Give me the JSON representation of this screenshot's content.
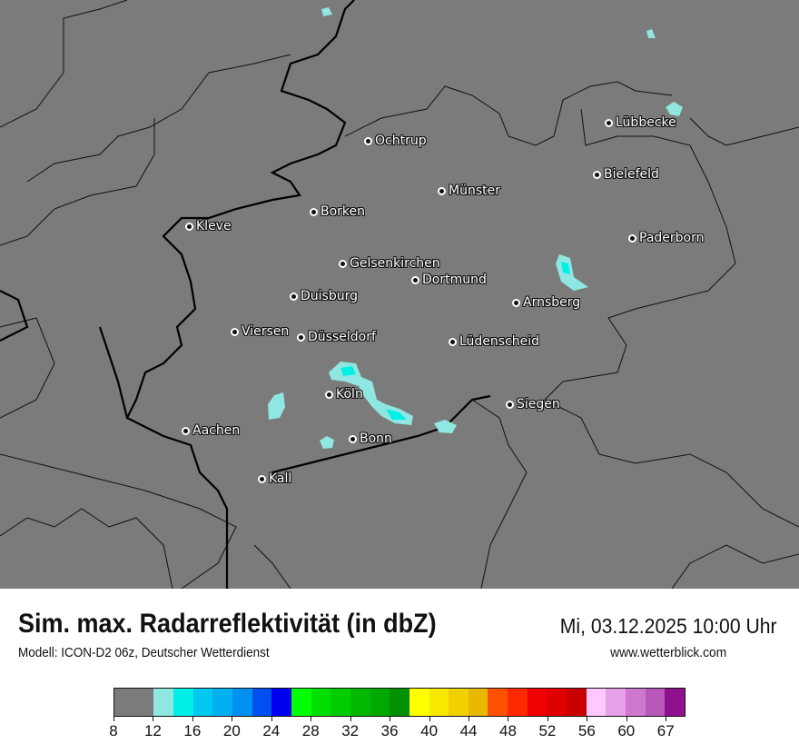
{
  "title": "Sim. max. Radarreflektivität (in dbZ)",
  "datetime": "Mi, 03.12.2025 10:00 Uhr",
  "model": "Modell: ICON-D2 06z, Deutscher Wetterdienst",
  "website": "www.wetterblick.com",
  "map": {
    "background_color": "#7b7b7b",
    "precip_color_light": "#90e6e0",
    "precip_color_core": "#00f0e8",
    "cities": [
      {
        "name": "Ochtrup"
      },
      {
        "name": "Lübbecke"
      },
      {
        "name": "Bielefeld"
      },
      {
        "name": "Münster"
      },
      {
        "name": "Borken"
      },
      {
        "name": "Kleve"
      },
      {
        "name": "Paderborn"
      },
      {
        "name": "Gelsenkirchen"
      },
      {
        "name": "Dortmund"
      },
      {
        "name": "Duisburg"
      },
      {
        "name": "Arnsberg"
      },
      {
        "name": "Viersen"
      },
      {
        "name": "Düsseldorf"
      },
      {
        "name": "Lüdenscheid"
      },
      {
        "name": "Köln"
      },
      {
        "name": "Siegen"
      },
      {
        "name": "Aachen"
      },
      {
        "name": "Bonn"
      },
      {
        "name": "Kall"
      }
    ]
  },
  "legend": {
    "unit": "dbZ",
    "tick_labels": [
      "8",
      "12",
      "16",
      "20",
      "24",
      "28",
      "32",
      "36",
      "40",
      "44",
      "48",
      "52",
      "56",
      "60",
      "67"
    ],
    "colors": [
      "#7b7b7b",
      "#90e6e0",
      "#00f0e8",
      "#00c8f0",
      "#00b0f0",
      "#0090f0",
      "#0050f0",
      "#0000f0",
      "#00ff00",
      "#00e000",
      "#00cc00",
      "#00b800",
      "#00a800",
      "#009000",
      "#ffff00",
      "#f8e800",
      "#f0d000",
      "#e8b800",
      "#ff5000",
      "#ff2800",
      "#f00000",
      "#e00000",
      "#c80000",
      "#ffc8ff",
      "#e8a0e8",
      "#d078d0",
      "#b858b8",
      "#901090"
    ]
  }
}
